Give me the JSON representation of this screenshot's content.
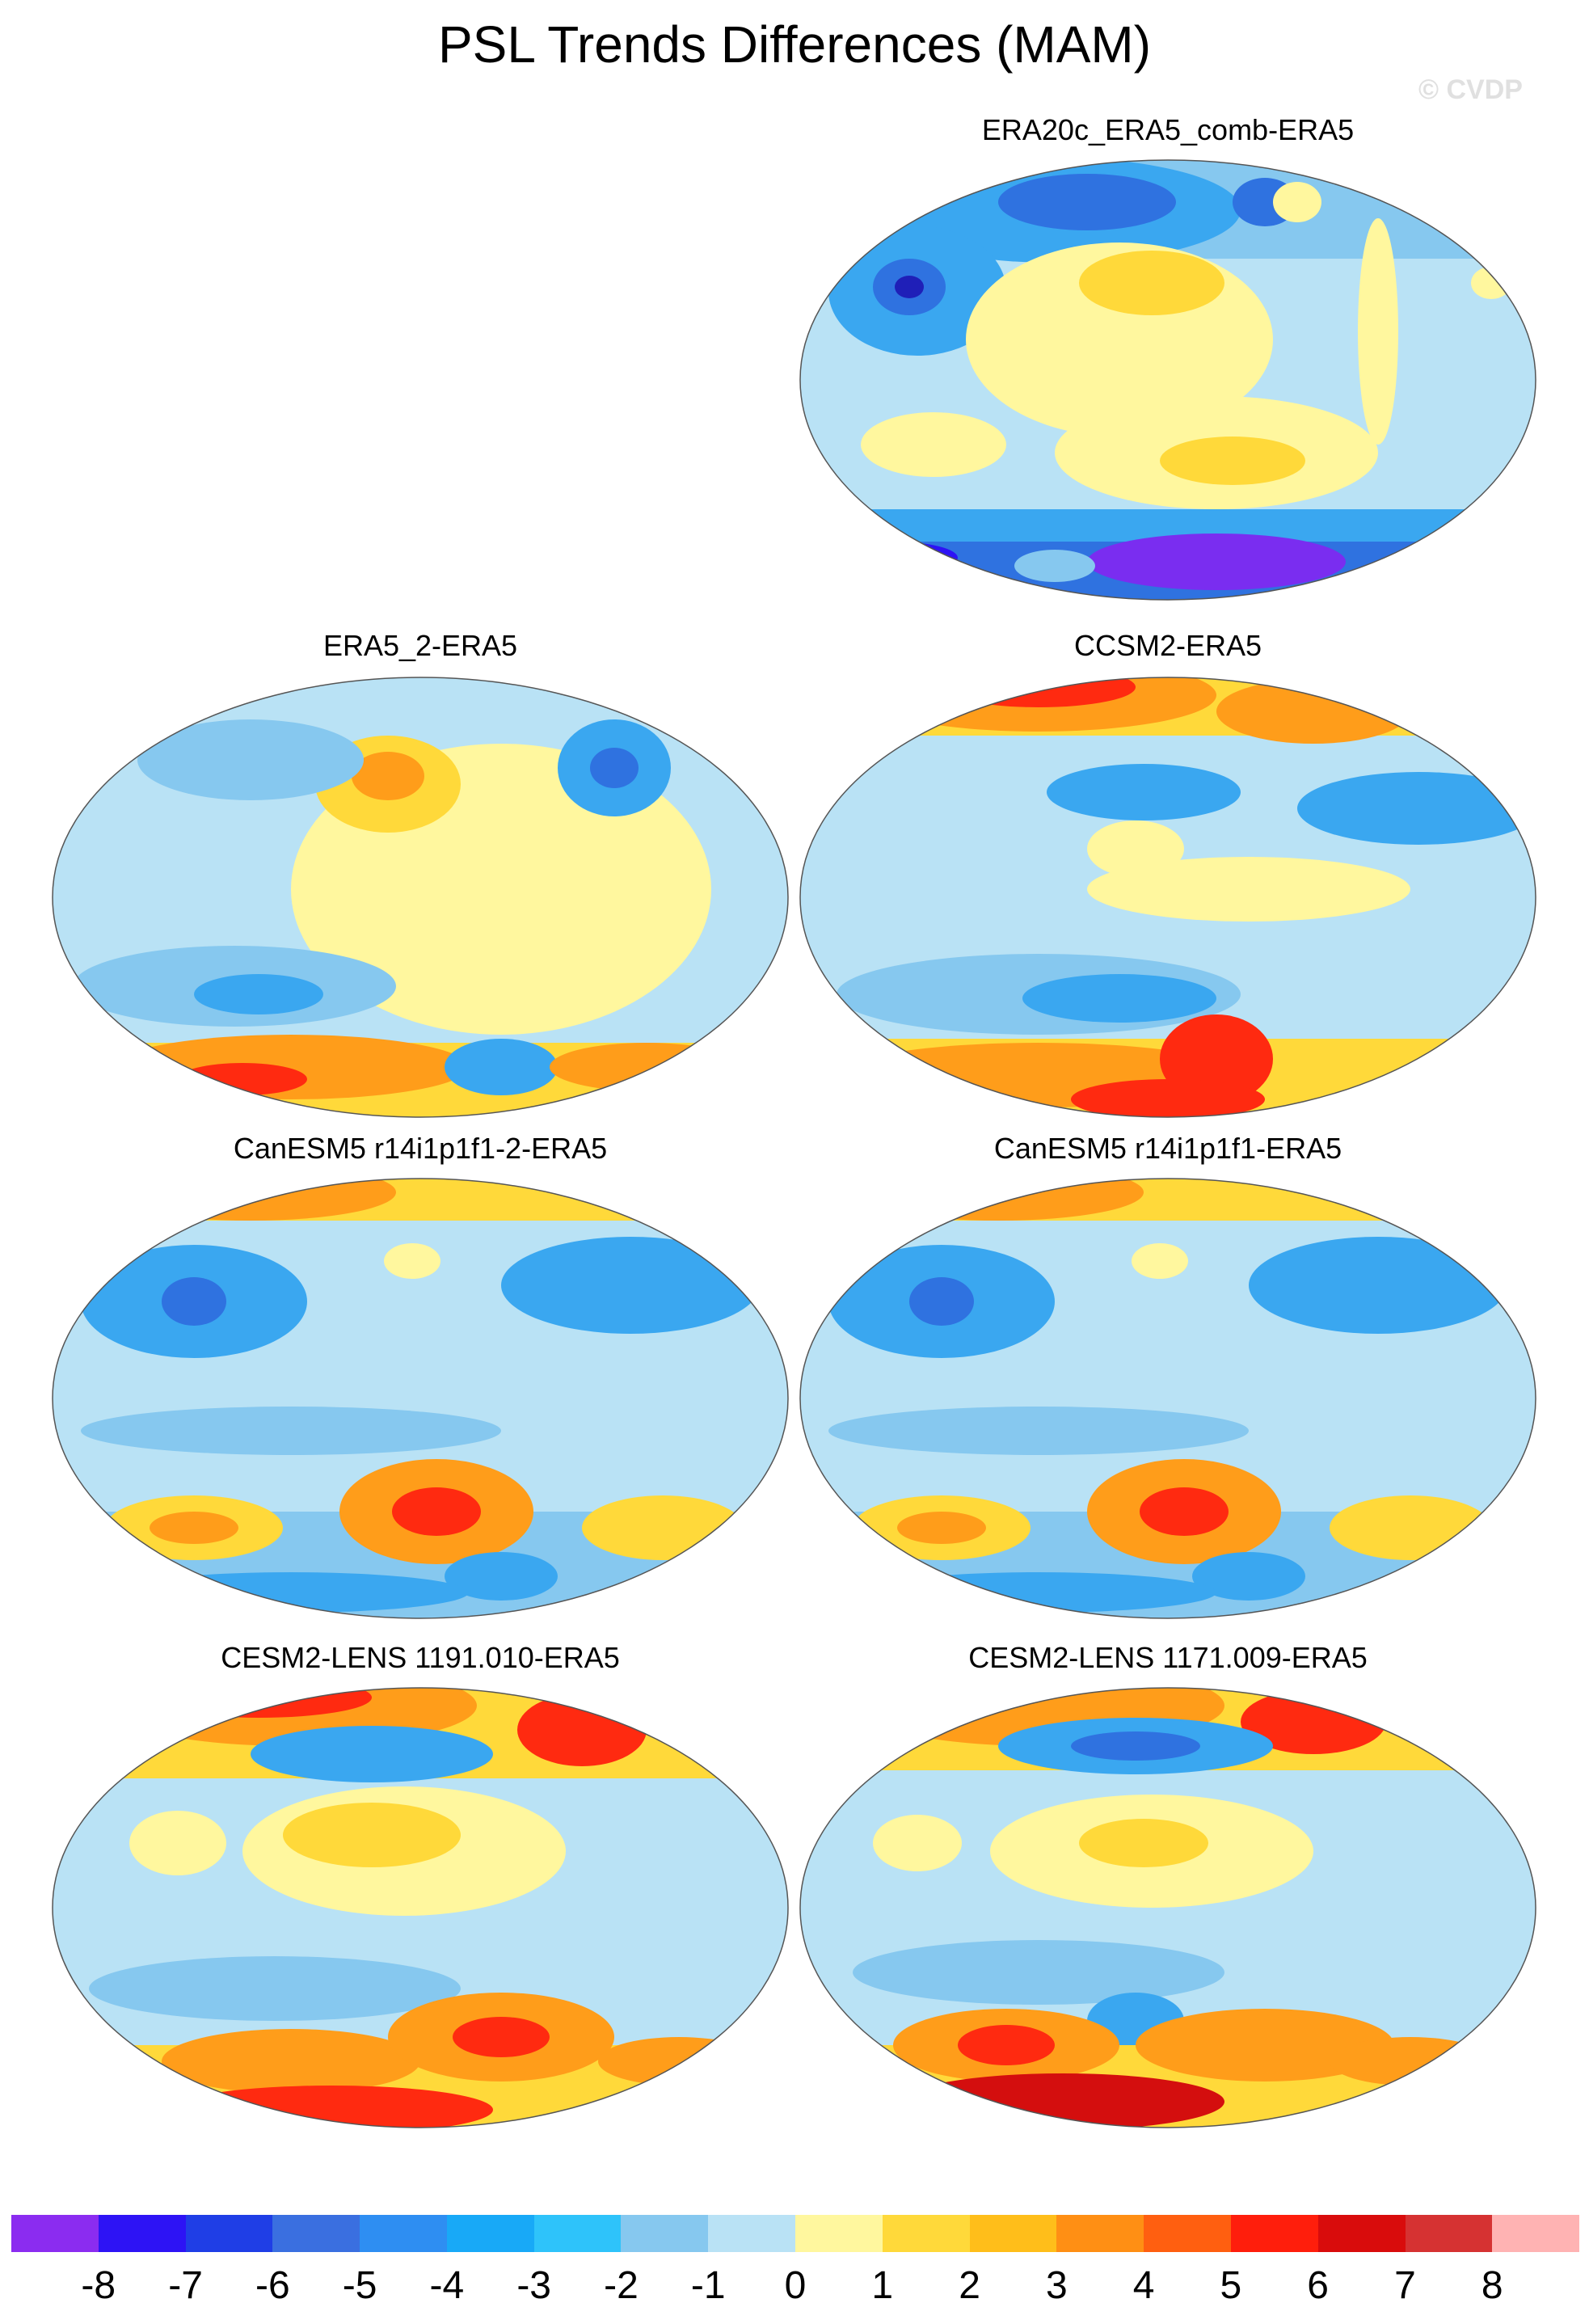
{
  "title": "PSL Trends Differences (MAM)",
  "watermark": "© CVDP",
  "colors": {
    "land_ocean_base": "#b9e2f5",
    "blue_light": "#86c8ef",
    "blue_mid": "#3aa7f0",
    "blue_dark": "#2f72e0",
    "yellow_light": "#fff79e",
    "yellow": "#ffd93a",
    "orange": "#ff9d1a",
    "red": "#ff2a10",
    "dark_red": "#d40e0e",
    "purple": "#7a2df0"
  },
  "panels": [
    {
      "id": "era20c",
      "title": "ERA20c_ERA5_comb-ERA5"
    },
    {
      "id": "era5_2",
      "title": "ERA5_2-ERA5"
    },
    {
      "id": "ccsm2",
      "title": "CCSM2-ERA5"
    },
    {
      "id": "canesm5_2",
      "title": "CanESM5 r14i1p1f1-2-ERA5"
    },
    {
      "id": "canesm5",
      "title": "CanESM5 r14i1p1f1-ERA5"
    },
    {
      "id": "cesm2_1191",
      "title": "CESM2-LENS 1191.010-ERA5"
    },
    {
      "id": "cesm2_1171",
      "title": "CESM2-LENS 1171.009-ERA5"
    }
  ],
  "colorbar": {
    "colors": [
      "#8b2cf0",
      "#2d13f5",
      "#1f3ee6",
      "#3a6fe0",
      "#2e8ef2",
      "#18a9f7",
      "#2ec3fa",
      "#86c8ef",
      "#b9e2f5",
      "#fff79e",
      "#ffd93a",
      "#ffbe1a",
      "#ff8f14",
      "#ff5f10",
      "#ff1e0c",
      "#d90c0c",
      "#d63232",
      "#ffb3b3"
    ],
    "labels": [
      "-8",
      "-7",
      "-6",
      "-5",
      "-4",
      "-3",
      "-2",
      "-1",
      "0",
      "1",
      "2",
      "3",
      "4",
      "5",
      "6",
      "7",
      "8"
    ]
  }
}
